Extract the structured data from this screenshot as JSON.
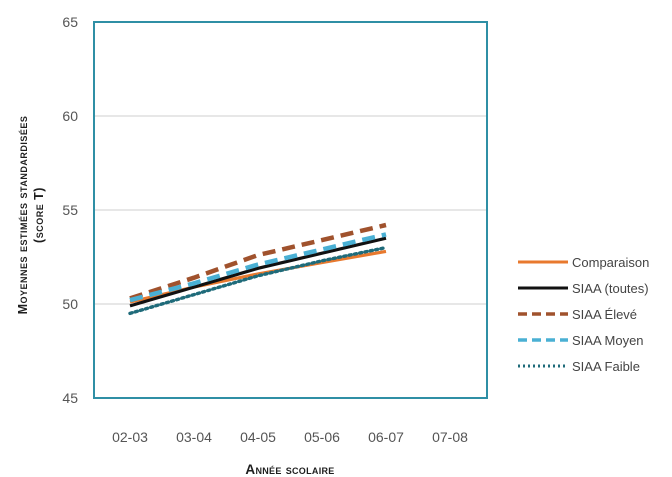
{
  "chart_data": {
    "type": "line",
    "categories": [
      "02-03",
      "03-04",
      "04-05",
      "05-06",
      "06-07",
      "07-08"
    ],
    "ylim": [
      45,
      65
    ],
    "yticks": [
      45,
      50,
      55,
      60,
      65
    ],
    "ylabel_line1": "Moyennes estimées standardisées",
    "ylabel_line2": "(score T)",
    "xlabel": "Année scolaire",
    "legend_position": "right",
    "grid": "horizontal",
    "frame_color": "#2f8fa5",
    "series": [
      {
        "name": "Comparaison",
        "color": "#e8792e",
        "dash": "solid",
        "values": [
          50.1,
          50.9,
          51.6,
          52.2,
          52.8,
          null
        ]
      },
      {
        "name": "SIAA (toutes)",
        "color": "#111111",
        "dash": "solid",
        "values": [
          49.9,
          50.9,
          51.9,
          52.7,
          53.5,
          null
        ]
      },
      {
        "name": "SIAA Élevé",
        "color": "#a0522d",
        "dash": "dashed",
        "values": [
          50.3,
          51.4,
          52.6,
          53.4,
          54.2,
          null
        ]
      },
      {
        "name": "SIAA Moyen",
        "color": "#4ab0d4",
        "dash": "dashed",
        "values": [
          50.2,
          51.1,
          52.1,
          52.9,
          53.7,
          null
        ]
      },
      {
        "name": "SIAA Faible",
        "color": "#1f6b7a",
        "dash": "dotted",
        "values": [
          49.5,
          50.5,
          51.5,
          52.3,
          53.0,
          null
        ]
      }
    ]
  }
}
